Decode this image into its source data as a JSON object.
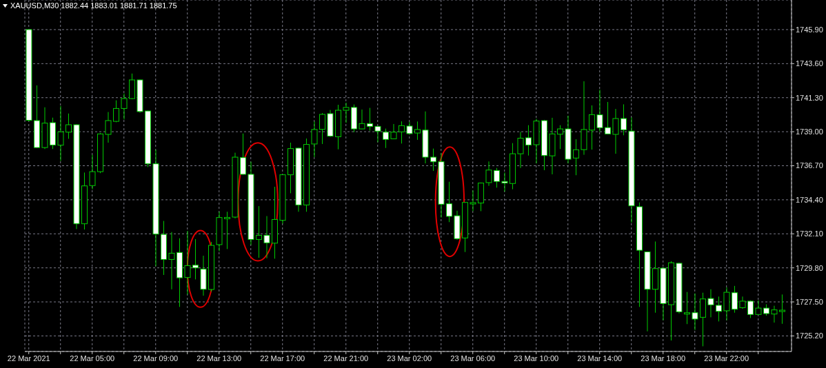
{
  "chart_data": {
    "type": "candlestick",
    "title": "XAUUSD,M30 1882.44 1883.01 1881.71 1881.75",
    "categories": [
      "22 Mar 2021",
      null,
      null,
      null,
      null,
      null,
      null,
      null,
      "22 Mar 05:00",
      null,
      null,
      null,
      null,
      null,
      null,
      null,
      "22 Mar 09:00",
      null,
      null,
      null,
      null,
      null,
      null,
      null,
      "22 Mar 13:00",
      null,
      null,
      null,
      null,
      null,
      null,
      null,
      "22 Mar 17:00",
      null,
      null,
      null,
      null,
      null,
      null,
      null,
      "22 Mar 21:00",
      null,
      null,
      null,
      null,
      null,
      null,
      null,
      "23 Mar 02:00",
      null,
      null,
      null,
      null,
      null,
      null,
      null,
      "23 Mar 06:00",
      null,
      null,
      null,
      null,
      null,
      null,
      null,
      "23 Mar 10:00",
      null,
      null,
      null,
      null,
      null,
      null,
      null,
      "23 Mar 14:00",
      null,
      null,
      null,
      null,
      null,
      null,
      null,
      "23 Mar 18:00",
      null,
      null,
      null,
      null,
      null,
      null,
      null,
      "23 Mar 22:00",
      null,
      null,
      null,
      null,
      null,
      null,
      null
    ],
    "ohlc": [
      [
        1745.9,
        1745.9,
        1739.7,
        1739.77
      ],
      [
        1739.75,
        1742.13,
        1737.9,
        1737.93
      ],
      [
        1737.93,
        1740.65,
        1737.83,
        1739.58
      ],
      [
        1739.61,
        1739.95,
        1737.83,
        1738.1
      ],
      [
        1738.09,
        1740.74,
        1737.02,
        1738.99
      ],
      [
        1738.97,
        1740.23,
        1738.52,
        1739.47
      ],
      [
        1739.47,
        1739.5,
        1732.42,
        1732.78
      ],
      [
        1732.78,
        1736.24,
        1732.39,
        1735.34
      ],
      [
        1735.36,
        1737.44,
        1735.11,
        1736.3
      ],
      [
        1736.3,
        1738.91,
        1736.2,
        1738.85
      ],
      [
        1738.82,
        1740.33,
        1738.26,
        1739.75
      ],
      [
        1739.7,
        1741.12,
        1739.64,
        1740.57
      ],
      [
        1740.57,
        1741.58,
        1739.83,
        1741.24
      ],
      [
        1741.24,
        1742.93,
        1741.2,
        1742.5
      ],
      [
        1742.5,
        1742.52,
        1740.28,
        1740.36
      ],
      [
        1740.4,
        1740.42,
        1736.61,
        1736.83
      ],
      [
        1736.83,
        1737.78,
        1729.91,
        1732.08
      ],
      [
        1732.06,
        1732.97,
        1729.32,
        1730.37
      ],
      [
        1730.37,
        1732.22,
        1728.35,
        1730.79
      ],
      [
        1730.84,
        1731.8,
        1727.16,
        1729.13
      ],
      [
        1729.15,
        1732.3,
        1728.0,
        1729.95
      ],
      [
        1729.98,
        1731.74,
        1729.02,
        1729.8
      ],
      [
        1729.72,
        1730.62,
        1727.92,
        1728.35
      ],
      [
        1728.34,
        1731.55,
        1728.2,
        1731.32
      ],
      [
        1731.37,
        1733.59,
        1730.92,
        1733.2
      ],
      [
        1733.18,
        1733.59,
        1731.07,
        1733.21
      ],
      [
        1733.23,
        1737.58,
        1733.14,
        1737.28
      ],
      [
        1737.25,
        1738.88,
        1736.1,
        1736.12
      ],
      [
        1736.12,
        1736.97,
        1731.35,
        1731.72
      ],
      [
        1731.72,
        1733.97,
        1730.48,
        1732.0
      ],
      [
        1732.0,
        1733.3,
        1730.45,
        1731.49
      ],
      [
        1731.47,
        1735.28,
        1730.42,
        1733.07
      ],
      [
        1733.01,
        1736.12,
        1732.78,
        1736.09
      ],
      [
        1736.09,
        1738.26,
        1734.84,
        1737.86
      ],
      [
        1737.89,
        1737.92,
        1733.59,
        1734.05
      ],
      [
        1734.05,
        1738.54,
        1733.59,
        1738.14
      ],
      [
        1738.17,
        1739.69,
        1737.28,
        1739.15
      ],
      [
        1739.16,
        1740.26,
        1738.17,
        1740.17
      ],
      [
        1740.22,
        1740.47,
        1738.65,
        1738.7
      ],
      [
        1738.66,
        1740.82,
        1737.81,
        1740.45
      ],
      [
        1740.45,
        1740.96,
        1739.6,
        1740.64
      ],
      [
        1740.64,
        1740.84,
        1738.97,
        1739.19
      ],
      [
        1739.19,
        1740.5,
        1739.17,
        1739.55
      ],
      [
        1739.55,
        1740.61,
        1739.07,
        1739.36
      ],
      [
        1739.36,
        1739.38,
        1738.29,
        1739.04
      ],
      [
        1738.97,
        1739.21,
        1737.9,
        1738.48
      ],
      [
        1738.52,
        1739.52,
        1738.5,
        1738.97
      ],
      [
        1738.99,
        1739.7,
        1738.2,
        1739.41
      ],
      [
        1739.38,
        1739.66,
        1738.8,
        1738.87
      ],
      [
        1738.91,
        1739.69,
        1738.45,
        1739.15
      ],
      [
        1739.11,
        1740.37,
        1736.86,
        1737.28
      ],
      [
        1737.28,
        1737.86,
        1736.35,
        1736.97
      ],
      [
        1736.97,
        1737.55,
        1733.2,
        1734.1
      ],
      [
        1734.13,
        1735.62,
        1732.89,
        1733.28
      ],
      [
        1733.32,
        1733.66,
        1731.7,
        1731.77
      ],
      [
        1731.82,
        1734.24,
        1730.87,
        1734.22
      ],
      [
        1734.2,
        1735.03,
        1733.63,
        1734.21
      ],
      [
        1734.18,
        1735.57,
        1733.63,
        1735.53
      ],
      [
        1735.56,
        1736.99,
        1735.34,
        1736.41
      ],
      [
        1736.38,
        1736.55,
        1735.22,
        1735.64
      ],
      [
        1735.64,
        1736.24,
        1734.95,
        1735.53
      ],
      [
        1735.5,
        1738.23,
        1735.11,
        1737.51
      ],
      [
        1737.51,
        1738.99,
        1736.55,
        1738.56
      ],
      [
        1738.59,
        1739.44,
        1737.39,
        1738.1
      ],
      [
        1738.12,
        1739.87,
        1736.86,
        1739.72
      ],
      [
        1739.75,
        1739.8,
        1736.4,
        1737.39
      ],
      [
        1737.37,
        1739.94,
        1736.12,
        1738.85
      ],
      [
        1738.83,
        1739.44,
        1737.83,
        1739.19
      ],
      [
        1739.19,
        1740.08,
        1736.86,
        1737.14
      ],
      [
        1737.22,
        1738.49,
        1736.06,
        1737.78
      ],
      [
        1737.79,
        1742.41,
        1737.44,
        1739.15
      ],
      [
        1739.11,
        1740.78,
        1737.79,
        1740.15
      ],
      [
        1740.14,
        1741.84,
        1738.99,
        1739.27
      ],
      [
        1739.28,
        1741.01,
        1738.83,
        1738.85
      ],
      [
        1738.82,
        1740.54,
        1737.51,
        1739.89
      ],
      [
        1739.89,
        1740.85,
        1738.76,
        1739.13
      ],
      [
        1739.04,
        1739.97,
        1732.86,
        1733.99
      ],
      [
        1733.93,
        1734.22,
        1727.16,
        1730.99
      ],
      [
        1730.88,
        1730.9,
        1725.51,
        1728.35
      ],
      [
        1728.35,
        1731.58,
        1726.77,
        1729.75
      ],
      [
        1729.78,
        1729.8,
        1726.26,
        1727.39
      ],
      [
        1727.31,
        1730.25,
        1724.89,
        1730.14
      ],
      [
        1730.11,
        1730.15,
        1726.72,
        1726.83
      ],
      [
        1726.75,
        1728.17,
        1726.0,
        1726.77
      ],
      [
        1726.77,
        1728.07,
        1725.6,
        1726.34
      ],
      [
        1726.46,
        1728.12,
        1724.5,
        1727.7
      ],
      [
        1727.73,
        1728.35,
        1726.46,
        1727.3
      ],
      [
        1727.27,
        1727.86,
        1726.18,
        1726.86
      ],
      [
        1726.9,
        1728.48,
        1726.26,
        1728.15
      ],
      [
        1728.12,
        1728.58,
        1726.77,
        1727.0
      ],
      [
        1727.11,
        1727.86,
        1727.03,
        1727.55
      ],
      [
        1727.55,
        1727.61,
        1726.41,
        1726.65
      ],
      [
        1726.65,
        1727.61,
        1726.63,
        1727.08
      ],
      [
        1727.08,
        1727.34,
        1726.57,
        1726.71
      ],
      [
        1726.68,
        1727.24,
        1726.1,
        1726.96
      ],
      [
        1726.93,
        1728.0,
        1726.02,
        1726.94
      ]
    ],
    "color": "#00cc00",
    "ylim": [
      1724.15,
      1747.9
    ],
    "yticks": [
      {
        "value": 1725.2,
        "label": "1725.20"
      },
      {
        "value": 1727.5,
        "label": "1727.50"
      },
      {
        "value": 1729.8,
        "label": "1729.80"
      },
      {
        "value": 1732.1,
        "label": "1732.10"
      },
      {
        "value": 1734.4,
        "label": "1734.40"
      },
      {
        "value": 1736.7,
        "label": "1736.70"
      },
      {
        "value": 1739.0,
        "label": "1739.00"
      },
      {
        "value": 1741.3,
        "label": "1741.30"
      },
      {
        "value": 1743.6,
        "label": "1743.60"
      },
      {
        "value": 1745.9,
        "label": "1745.90"
      }
    ],
    "grid": true
  }
}
